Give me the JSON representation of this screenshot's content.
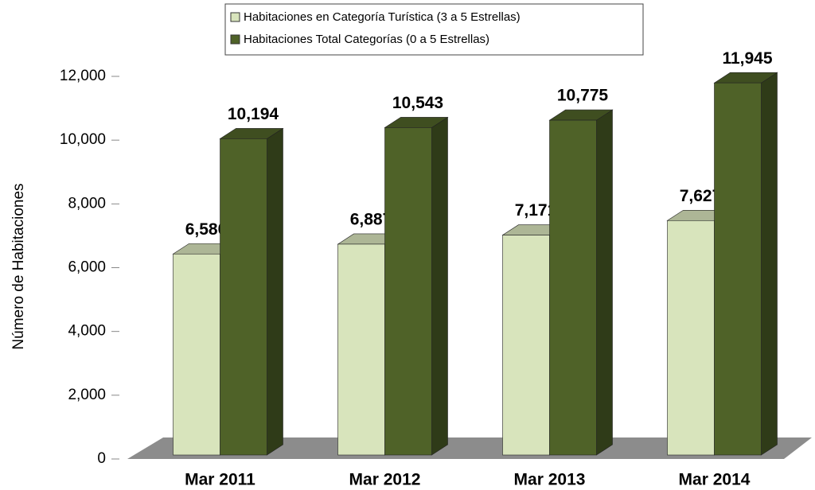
{
  "chart_data": {
    "type": "bar3d",
    "y_axis_label": "Número de Habitaciones",
    "categories": [
      "Mar 2011",
      "Mar 2012",
      "Mar 2013",
      "Mar 2014"
    ],
    "series": [
      {
        "name": "Habitaciones en Categoría Turística (3 a 5 Estrellas)",
        "color": "#d8e4bc",
        "values": [
          6580,
          6887,
          7171,
          7627
        ],
        "value_labels": [
          "6,580",
          "6,887",
          "7,171",
          "7,627"
        ]
      },
      {
        "name": "Habitaciones Total Categorías (0 a 5 Estrellas)",
        "color": "#4f6228",
        "values": [
          10194,
          10543,
          10775,
          11945
        ],
        "value_labels": [
          "10,194",
          "10,543",
          "10,775",
          "11,945"
        ]
      }
    ],
    "ylim": [
      0,
      12000
    ],
    "yticks": [
      0,
      {
        "value": 2000,
        "label": "2,000"
      },
      {
        "value": 4000,
        "label": "4,000"
      },
      {
        "value": 6000,
        "label": "6,000"
      },
      {
        "value": 8000,
        "label": "8,000"
      },
      {
        "value": 10000,
        "label": "10,000"
      },
      {
        "value": 12000,
        "label": "12,000"
      }
    ],
    "legend": "top"
  }
}
